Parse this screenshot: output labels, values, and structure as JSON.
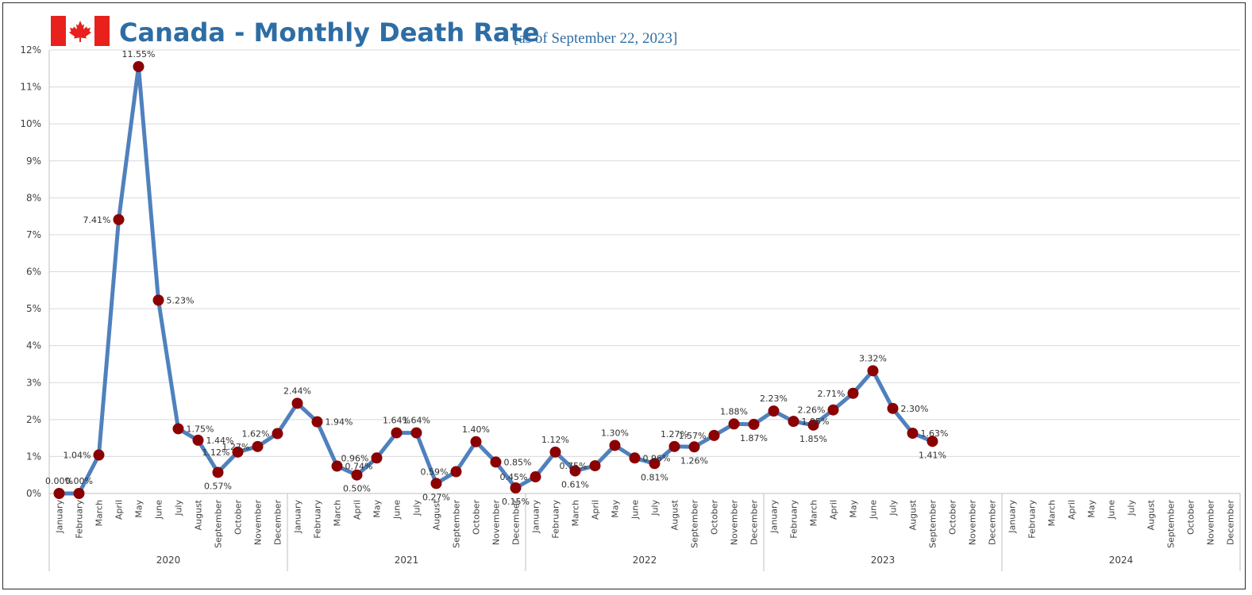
{
  "title": {
    "main": "Canada - Monthly Death Rate",
    "subtitle": "[as of September 22, 2023]"
  },
  "flag_icon": "canada-flag-icon",
  "colors": {
    "line": "#4f81bd",
    "marker": "#8b0000",
    "flag_red": "#e8211d",
    "title": "#2e6da4",
    "grid": "#d9d9d9"
  },
  "chart_data": {
    "type": "line",
    "title": "Canada - Monthly Death Rate",
    "subtitle": "[as of September 22, 2023]",
    "xlabel": "",
    "ylabel": "",
    "ylim": [
      0,
      12
    ],
    "yticks": [
      "0%",
      "1%",
      "2%",
      "3%",
      "4%",
      "5%",
      "6%",
      "7%",
      "8%",
      "9%",
      "10%",
      "11%",
      "12%"
    ],
    "grid": true,
    "legend": "none",
    "years": [
      "2020",
      "2021",
      "2022",
      "2023",
      "2024"
    ],
    "months": [
      "January",
      "February",
      "March",
      "April",
      "May",
      "June",
      "July",
      "August",
      "September",
      "October",
      "November",
      "December"
    ],
    "values": [
      0.0,
      0.0,
      1.04,
      7.41,
      11.55,
      5.23,
      1.75,
      1.44,
      0.57,
      1.12,
      1.27,
      1.62,
      2.44,
      1.94,
      0.74,
      0.5,
      0.96,
      1.64,
      1.64,
      0.27,
      0.59,
      1.4,
      0.85,
      0.15,
      0.45,
      1.12,
      0.61,
      0.75,
      1.3,
      0.96,
      0.81,
      1.27,
      1.26,
      1.57,
      1.88,
      1.87,
      2.23,
      1.95,
      1.85,
      2.26,
      2.71,
      3.32,
      2.3,
      1.63,
      1.41
    ],
    "data_labels": [
      "0.00%",
      "0.00%",
      "1.04%",
      "7.41%",
      "11.55%",
      "5.23%",
      "1.75%",
      "1.44%",
      "0.57%",
      "1.12%",
      "1.27%",
      "1.62%",
      "2.44%",
      "1.94%",
      "0.74%",
      "0.50%",
      "0.96%",
      "1.64%",
      "1.64%",
      "0.27%",
      "0.59%",
      "1.40%",
      "0.85%",
      "0.15%",
      "0.45%",
      "1.12%",
      "0.61%",
      "0.75%",
      "1.30%",
      "0.96%",
      "0.81%",
      "1.27%",
      "1.26%",
      "1.57%",
      "1.88%",
      "1.87%",
      "2.23%",
      "1.95%",
      "1.85%",
      "2.26%",
      "2.71%",
      "3.32%",
      "2.30%",
      "1.63%",
      "1.41%"
    ]
  }
}
